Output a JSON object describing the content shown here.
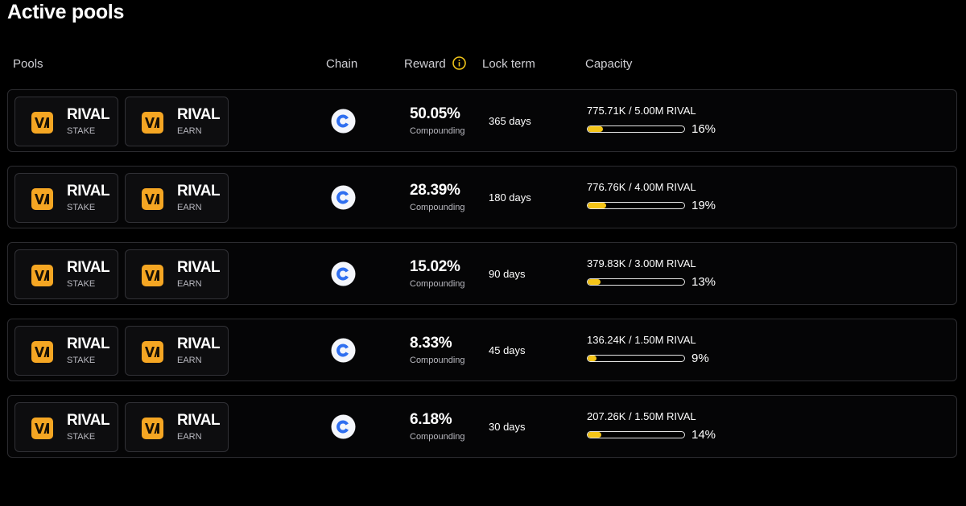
{
  "page": {
    "title": "Active pools"
  },
  "columns": {
    "pools": "Pools",
    "chain": "Chain",
    "reward": "Reward",
    "lock_term": "Lock term",
    "capacity": "Capacity"
  },
  "icons": {
    "token": "rival-logo-icon",
    "chain": "chain-logo-icon",
    "info": "info-icon"
  },
  "colors": {
    "accent": "#f5a623",
    "progress_fill": "#f5c518",
    "info_icon": "#f0c419",
    "chain_blue": "#2f6ff0"
  },
  "pools": [
    {
      "stake_token": {
        "name": "RIVAL",
        "label": "STAKE"
      },
      "earn_token": {
        "name": "RIVAL",
        "label": "EARN"
      },
      "reward": "50.05%",
      "reward_type": "Compounding",
      "lock_term": "365 days",
      "capacity": "775.71K / 5.00M RIVAL",
      "percent": "16%",
      "fill": 0.16
    },
    {
      "stake_token": {
        "name": "RIVAL",
        "label": "STAKE"
      },
      "earn_token": {
        "name": "RIVAL",
        "label": "EARN"
      },
      "reward": "28.39%",
      "reward_type": "Compounding",
      "lock_term": "180 days",
      "capacity": "776.76K / 4.00M RIVAL",
      "percent": "19%",
      "fill": 0.19
    },
    {
      "stake_token": {
        "name": "RIVAL",
        "label": "STAKE"
      },
      "earn_token": {
        "name": "RIVAL",
        "label": "EARN"
      },
      "reward": "15.02%",
      "reward_type": "Compounding",
      "lock_term": "90 days",
      "capacity": "379.83K / 3.00M RIVAL",
      "percent": "13%",
      "fill": 0.13
    },
    {
      "stake_token": {
        "name": "RIVAL",
        "label": "STAKE"
      },
      "earn_token": {
        "name": "RIVAL",
        "label": "EARN"
      },
      "reward": "8.33%",
      "reward_type": "Compounding",
      "lock_term": "45 days",
      "capacity": "136.24K / 1.50M RIVAL",
      "percent": "9%",
      "fill": 0.09
    },
    {
      "stake_token": {
        "name": "RIVAL",
        "label": "STAKE"
      },
      "earn_token": {
        "name": "RIVAL",
        "label": "EARN"
      },
      "reward": "6.18%",
      "reward_type": "Compounding",
      "lock_term": "30 days",
      "capacity": "207.26K / 1.50M RIVAL",
      "percent": "14%",
      "fill": 0.14
    }
  ]
}
